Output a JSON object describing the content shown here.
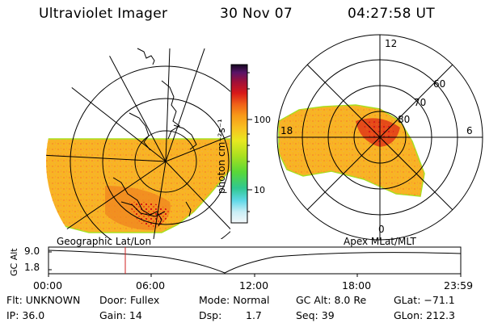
{
  "header": {
    "instrument": "Ultraviolet Imager",
    "date": "30 Nov 07",
    "time": "04:27:58 UT"
  },
  "colorbar": {
    "unit_label": "photon cm⁻²s⁻¹",
    "ticks": [
      "100",
      "10"
    ],
    "colors": [
      "#1a0a28",
      "#3a1450",
      "#6a1a70",
      "#a01030",
      "#d0101a",
      "#f0401a",
      "#f87818",
      "#f8a018",
      "#f8c020",
      "#e0e020",
      "#a8e020",
      "#60d830",
      "#30c860",
      "#30c8c8",
      "#80e0f0",
      "#d8f4f8"
    ]
  },
  "geo_panel": {
    "caption": "Geographic Lat/Lon"
  },
  "mag_panel": {
    "caption": "Apex MLat/MLT",
    "mlt_labels": [
      "12",
      "18",
      "6",
      "0"
    ],
    "lat_labels": [
      "60",
      "70",
      "80"
    ]
  },
  "altitude_plot": {
    "axis_label": "GC Alt",
    "y_ticks": [
      "9.0",
      "1.8"
    ],
    "x_ticks": [
      "00:00",
      "06:00",
      "12:00",
      "18:00",
      "23:59"
    ],
    "marker_color": "#d02020"
  },
  "info": {
    "flt": "Flt: UNKNOWN",
    "ip": "IP: 36.0",
    "door": "Door: Fullex",
    "gain": "Gain: 14",
    "mode": "Mode: Normal",
    "dsp": "Dsp:",
    "dsp_value": "1.7",
    "gc_alt": "GC Alt: 8.0 Re",
    "seq": "Seq: 39",
    "glat": "GLat: −71.1",
    "glon": "GLon: 212.3"
  }
}
